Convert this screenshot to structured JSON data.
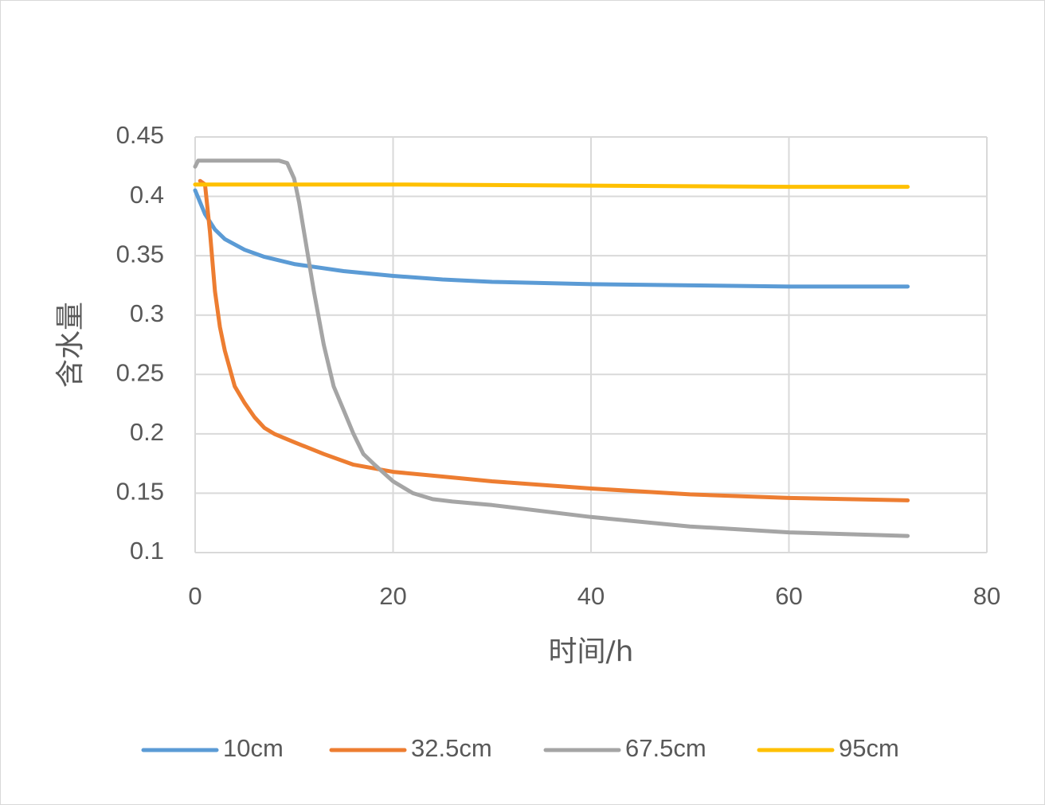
{
  "chart_data": {
    "type": "line",
    "xlabel": "时间/h",
    "ylabel": "含水量",
    "xlim": [
      0,
      80
    ],
    "ylim": [
      0.1,
      0.45
    ],
    "x_ticks": [
      "0",
      "20",
      "40",
      "60",
      "80"
    ],
    "y_ticks": [
      "0.1",
      "0.15",
      "0.2",
      "0.25",
      "0.3",
      "0.35",
      "0.4",
      "0.45"
    ],
    "grid": true,
    "legend_position": "bottom",
    "series": [
      {
        "name": "10cm",
        "color": "#5b9bd5",
        "points": [
          [
            0,
            0.405
          ],
          [
            1,
            0.385
          ],
          [
            2,
            0.372
          ],
          [
            3,
            0.364
          ],
          [
            5,
            0.355
          ],
          [
            7,
            0.349
          ],
          [
            10,
            0.343
          ],
          [
            15,
            0.337
          ],
          [
            20,
            0.333
          ],
          [
            25,
            0.33
          ],
          [
            30,
            0.328
          ],
          [
            40,
            0.326
          ],
          [
            50,
            0.325
          ],
          [
            60,
            0.324
          ],
          [
            72,
            0.324
          ]
        ]
      },
      {
        "name": "32.5cm",
        "color": "#ed7d31",
        "points": [
          [
            0.5,
            0.413
          ],
          [
            1,
            0.41
          ],
          [
            1.5,
            0.37
          ],
          [
            2,
            0.32
          ],
          [
            2.5,
            0.29
          ],
          [
            3,
            0.27
          ],
          [
            4,
            0.24
          ],
          [
            5,
            0.226
          ],
          [
            6,
            0.214
          ],
          [
            7,
            0.205
          ],
          [
            8,
            0.2
          ],
          [
            10,
            0.193
          ],
          [
            13,
            0.183
          ],
          [
            16,
            0.174
          ],
          [
            20,
            0.168
          ],
          [
            25,
            0.164
          ],
          [
            30,
            0.16
          ],
          [
            40,
            0.154
          ],
          [
            50,
            0.149
          ],
          [
            60,
            0.146
          ],
          [
            72,
            0.144
          ]
        ]
      },
      {
        "name": "67.5cm",
        "color": "#a5a5a5",
        "points": [
          [
            0,
            0.425
          ],
          [
            0.3,
            0.43
          ],
          [
            5,
            0.43
          ],
          [
            8.5,
            0.43
          ],
          [
            9.3,
            0.428
          ],
          [
            10,
            0.415
          ],
          [
            10.5,
            0.395
          ],
          [
            11,
            0.37
          ],
          [
            12,
            0.32
          ],
          [
            13,
            0.275
          ],
          [
            14,
            0.24
          ],
          [
            15,
            0.22
          ],
          [
            16,
            0.2
          ],
          [
            17,
            0.183
          ],
          [
            18,
            0.175
          ],
          [
            20,
            0.16
          ],
          [
            22,
            0.15
          ],
          [
            24,
            0.145
          ],
          [
            26,
            0.143
          ],
          [
            30,
            0.14
          ],
          [
            40,
            0.13
          ],
          [
            50,
            0.122
          ],
          [
            60,
            0.117
          ],
          [
            72,
            0.114
          ]
        ]
      },
      {
        "name": "95cm",
        "color": "#ffc000",
        "points": [
          [
            0,
            0.41
          ],
          [
            10,
            0.41
          ],
          [
            20,
            0.41
          ],
          [
            30,
            0.4095
          ],
          [
            40,
            0.409
          ],
          [
            50,
            0.4085
          ],
          [
            60,
            0.408
          ],
          [
            72,
            0.408
          ]
        ]
      }
    ]
  }
}
